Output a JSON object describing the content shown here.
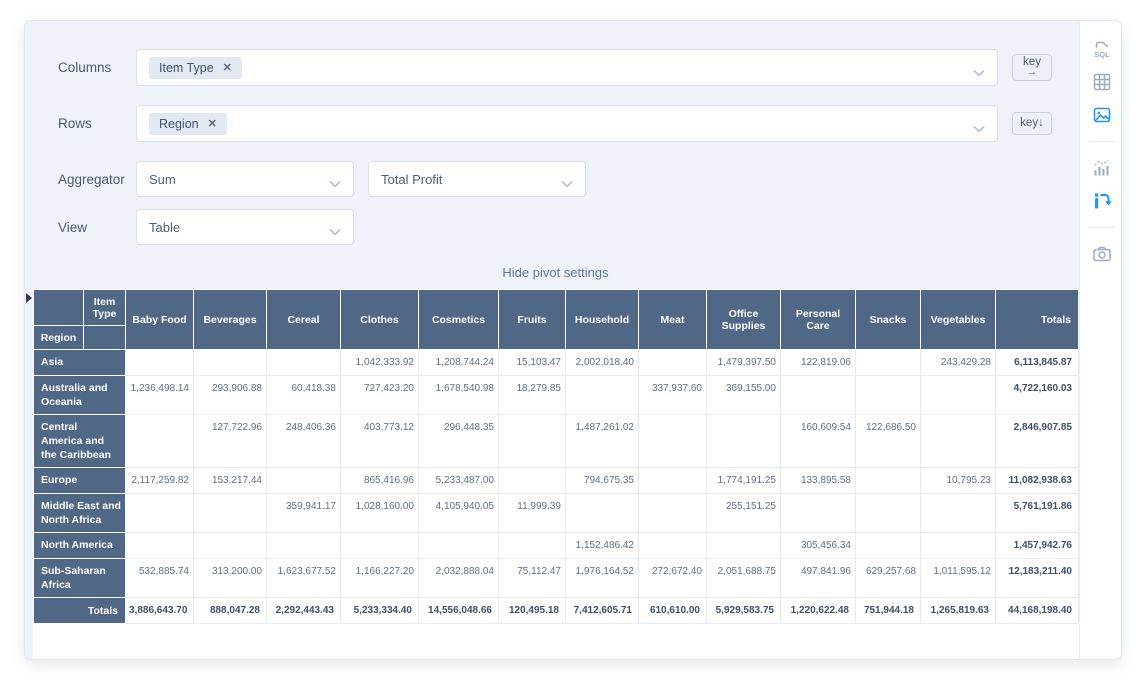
{
  "settings": {
    "columns": {
      "label": "Columns",
      "chips": [
        {
          "label": "Item Type",
          "remove_icon": "✕"
        }
      ],
      "key_button": {
        "text": "key",
        "arrow": "→"
      }
    },
    "rows": {
      "label": "Rows",
      "chips": [
        {
          "label": "Region",
          "remove_icon": "✕"
        }
      ],
      "key_button": {
        "text": "key",
        "arrow": "↓"
      }
    },
    "aggregator": {
      "label": "Aggregator",
      "value": "Sum",
      "field": "Total Profit"
    },
    "view": {
      "label": "View",
      "value": "Table"
    },
    "hide_link": "Hide pivot settings"
  },
  "table": {
    "col_axis_label": "Item Type",
    "row_axis_label": "Region",
    "columns": [
      "Baby Food",
      "Beverages",
      "Cereal",
      "Clothes",
      "Cosmetics",
      "Fruits",
      "Household",
      "Meat",
      "Office Supplies",
      "Personal Care",
      "Snacks",
      "Vegetables"
    ],
    "totals_label": "Totals",
    "rows": [
      {
        "label": "Asia",
        "values": [
          "",
          "",
          "",
          "1,042,333.92",
          "1,208,744.24",
          "15,103.47",
          "2,002,018.40",
          "",
          "1,479,397.50",
          "122,819.06",
          "",
          "243,429.28"
        ],
        "total": "6,113,845.87"
      },
      {
        "label": "Australia and Oceania",
        "values": [
          "1,236,498.14",
          "293,906.88",
          "60,418.38",
          "727,423.20",
          "1,678,540.98",
          "18,279.85",
          "",
          "337,937.60",
          "369,155.00",
          "",
          "",
          ""
        ],
        "total": "4,722,160.03"
      },
      {
        "label": "Central America and the Caribbean",
        "values": [
          "",
          "127,722.96",
          "248,406.36",
          "403,773.12",
          "296,448.35",
          "",
          "1,487,261.02",
          "",
          "",
          "160,609.54",
          "122,686.50",
          ""
        ],
        "total": "2,846,907.85"
      },
      {
        "label": "Europe",
        "values": [
          "2,117,259.82",
          "153,217.44",
          "",
          "865,416.96",
          "5,233,487.00",
          "",
          "794,675.35",
          "",
          "1,774,191.25",
          "133,895.58",
          "",
          "10,795.23"
        ],
        "total": "11,082,938.63"
      },
      {
        "label": "Middle East and North Africa",
        "values": [
          "",
          "",
          "359,941.17",
          "1,028,160.00",
          "4,105,940.05",
          "11,999.39",
          "",
          "",
          "255,151.25",
          "",
          "",
          ""
        ],
        "total": "5,761,191.86"
      },
      {
        "label": "North America",
        "values": [
          "",
          "",
          "",
          "",
          "",
          "",
          "1,152,486.42",
          "",
          "",
          "305,456.34",
          "",
          ""
        ],
        "total": "1,457,942.76"
      },
      {
        "label": "Sub-Saharan Africa",
        "values": [
          "532,885.74",
          "313,200.00",
          "1,623,677.52",
          "1,166,227.20",
          "2,032,888.04",
          "75,112.47",
          "1,976,164.52",
          "272,672.40",
          "2,051,688.75",
          "497,841.96",
          "629,257.68",
          "1,011,595.12"
        ],
        "total": "12,183,211.40"
      }
    ],
    "totals_row": {
      "label": "Totals",
      "values": [
        "3,886,643.70",
        "888,047.28",
        "2,292,443.43",
        "5,233,334.40",
        "14,556,048.66",
        "120,495.18",
        "7,412,605.71",
        "610,610.00",
        "5,929,583.75",
        "1,220,622.48",
        "751,944.18",
        "1,265,819.63"
      ],
      "total": "44,168,198.40"
    }
  },
  "toolbar": {
    "icons": [
      {
        "name": "sql-icon",
        "active": false,
        "group": 1
      },
      {
        "name": "table-grid-icon",
        "active": false,
        "group": 1
      },
      {
        "name": "image-chart-icon",
        "active": true,
        "group": 1
      },
      {
        "name": "bar-line-chart-icon",
        "active": false,
        "group": 2
      },
      {
        "name": "pivot-icon",
        "active": true,
        "group": 2
      },
      {
        "name": "camera-icon",
        "active": false,
        "group": 3
      }
    ]
  },
  "colors": {
    "accent_blue": "#2196f3",
    "header_bg": "#506786",
    "panel_bg": "#eff3f9",
    "totals_text": "#3c5068",
    "icon_gray": "#9fabbc"
  }
}
